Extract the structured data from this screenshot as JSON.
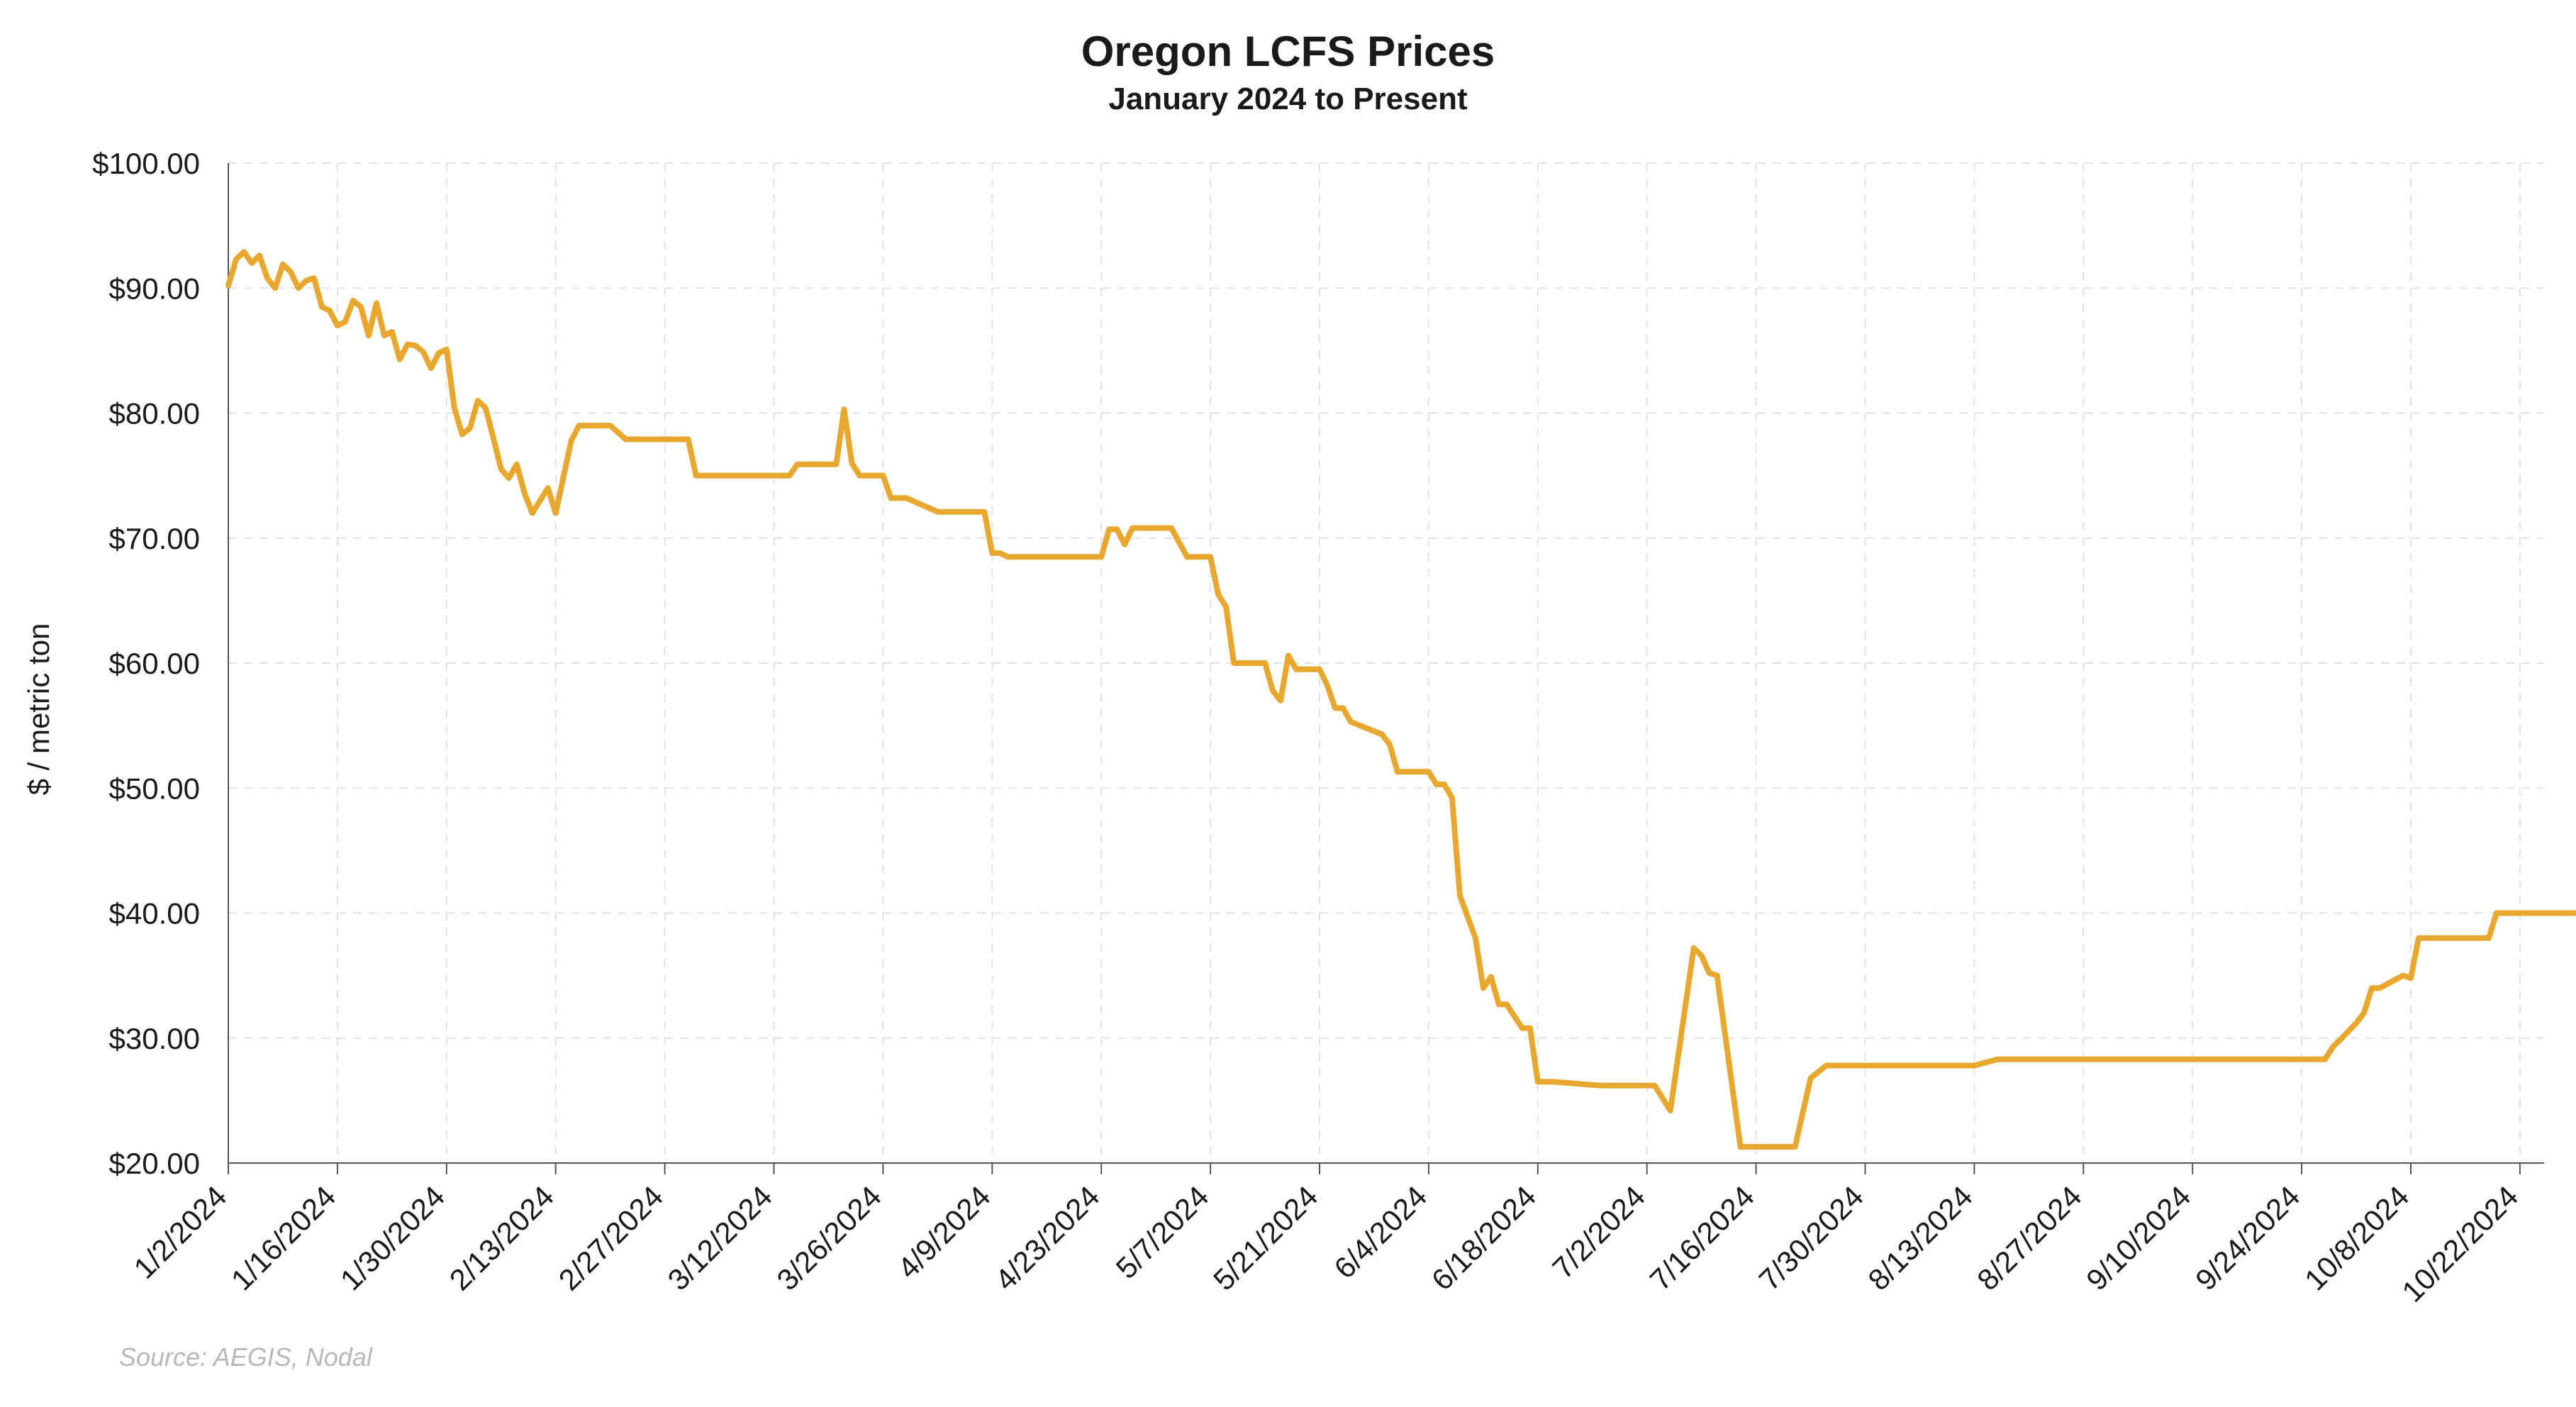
{
  "chart_data": {
    "type": "line",
    "title": "Oregon LCFS Prices",
    "subtitle": "January 2024 to Present",
    "xlabel": "",
    "ylabel": "$ / metric ton",
    "source": "Source: AEGIS, Nodal",
    "ylim": [
      20,
      100
    ],
    "xlim": [
      "2024-01-02",
      "2024-10-29"
    ],
    "yticks": [
      20,
      30,
      40,
      50,
      60,
      70,
      80,
      90,
      100
    ],
    "ytick_labels": [
      "$20.00",
      "$30.00",
      "$40.00",
      "$50.00",
      "$60.00",
      "$70.00",
      "$80.00",
      "$90.00",
      "$100.00"
    ],
    "xtick_labels": [
      "1/2/2024",
      "1/16/2024",
      "1/30/2024",
      "2/13/2024",
      "2/27/2024",
      "3/12/2024",
      "3/26/2024",
      "4/9/2024",
      "4/23/2024",
      "5/7/2024",
      "5/21/2024",
      "6/4/2024",
      "6/18/2024",
      "7/2/2024",
      "7/16/2024",
      "7/30/2024",
      "8/13/2024",
      "8/27/2024",
      "9/10/2024",
      "9/24/2024",
      "10/8/2024",
      "10/22/2024"
    ],
    "grid": true,
    "line_color": "#E8A830",
    "series": [
      {
        "x": [
          "2024-01-02",
          "2024-01-03",
          "2024-01-04",
          "2024-01-05",
          "2024-01-06",
          "2024-01-07",
          "2024-01-08",
          "2024-01-09",
          "2024-01-10",
          "2024-01-11",
          "2024-01-12",
          "2024-01-13",
          "2024-01-14",
          "2024-01-15",
          "2024-01-16",
          "2024-01-17",
          "2024-01-18",
          "2024-01-19",
          "2024-01-20",
          "2024-01-21",
          "2024-01-22",
          "2024-01-23",
          "2024-01-24",
          "2024-01-25",
          "2024-01-26",
          "2024-01-27",
          "2024-01-28",
          "2024-01-29",
          "2024-01-30",
          "2024-01-31",
          "2024-02-01",
          "2024-02-02",
          "2024-02-03",
          "2024-02-04",
          "2024-02-05",
          "2024-02-06",
          "2024-02-07",
          "2024-02-08",
          "2024-02-09",
          "2024-02-10",
          "2024-02-11",
          "2024-02-12",
          "2024-02-13",
          "2024-02-15",
          "2024-02-16",
          "2024-02-17",
          "2024-02-20",
          "2024-02-22",
          "2024-02-23",
          "2024-03-01",
          "2024-03-02",
          "2024-03-11",
          "2024-03-14",
          "2024-03-15",
          "2024-03-20",
          "2024-03-21",
          "2024-03-22",
          "2024-03-23",
          "2024-03-26",
          "2024-03-27",
          "2024-03-28",
          "2024-03-29",
          "2024-04-02",
          "2024-04-04",
          "2024-04-08",
          "2024-04-09",
          "2024-04-10",
          "2024-04-11",
          "2024-04-23",
          "2024-04-24",
          "2024-04-25",
          "2024-04-26",
          "2024-04-27",
          "2024-05-02",
          "2024-05-04",
          "2024-05-07",
          "2024-05-08",
          "2024-05-09",
          "2024-05-10",
          "2024-05-14",
          "2024-05-15",
          "2024-05-16",
          "2024-05-17",
          "2024-05-18",
          "2024-05-21",
          "2024-05-22",
          "2024-05-23",
          "2024-05-24",
          "2024-05-25",
          "2024-05-29",
          "2024-05-30",
          "2024-05-31",
          "2024-06-04",
          "2024-06-05",
          "2024-06-06",
          "2024-06-07",
          "2024-06-08",
          "2024-06-10",
          "2024-06-11",
          "2024-06-12",
          "2024-06-13",
          "2024-06-14",
          "2024-06-16",
          "2024-06-17",
          "2024-06-18",
          "2024-06-20",
          "2024-06-26",
          "2024-06-27",
          "2024-07-03",
          "2024-07-05",
          "2024-07-08",
          "2024-07-09",
          "2024-07-10",
          "2024-07-11",
          "2024-07-14",
          "2024-07-16",
          "2024-07-21",
          "2024-07-23",
          "2024-07-25",
          "2024-07-28",
          "2024-08-13",
          "2024-08-16",
          "2024-08-22",
          "2024-09-27",
          "2024-09-28",
          "2024-09-29",
          "2024-10-01",
          "2024-10-02",
          "2024-10-03",
          "2024-10-04",
          "2024-10-07",
          "2024-10-08",
          "2024-10-09",
          "2024-10-10",
          "2024-10-18",
          "2024-10-19",
          "2024-10-29"
        ],
        "y": [
          90.2,
          92.3,
          92.9,
          92.0,
          92.6,
          90.8,
          90.0,
          91.9,
          91.3,
          90.0,
          90.6,
          90.8,
          88.5,
          88.2,
          87.0,
          87.3,
          89.0,
          88.5,
          86.2,
          88.8,
          86.2,
          86.5,
          84.3,
          85.5,
          85.4,
          84.9,
          83.6,
          84.8,
          85.1,
          80.4,
          78.3,
          78.8,
          81.0,
          80.4,
          78.0,
          75.5,
          74.8,
          75.9,
          73.6,
          72.0,
          73.0,
          74.0,
          72.0,
          77.8,
          79.0,
          79.0,
          79.0,
          77.9,
          77.9,
          77.9,
          75.0,
          75.0,
          75.0,
          75.9,
          75.9,
          80.3,
          76.0,
          75.0,
          75.0,
          73.2,
          73.2,
          73.2,
          72.1,
          72.1,
          72.1,
          68.8,
          68.8,
          68.5,
          68.5,
          70.7,
          70.7,
          69.5,
          70.8,
          70.8,
          68.5,
          68.5,
          65.5,
          64.5,
          60.0,
          60.0,
          57.8,
          57.0,
          60.6,
          59.5,
          59.5,
          58.2,
          56.4,
          56.4,
          55.3,
          54.3,
          53.5,
          51.3,
          51.3,
          50.3,
          50.3,
          49.2,
          41.4,
          38.0,
          34.0,
          34.9,
          32.7,
          32.7,
          30.8,
          30.8,
          26.5,
          26.5,
          26.2,
          26.2,
          26.2,
          24.2,
          37.2,
          36.6,
          35.2,
          35.0,
          21.3,
          21.3,
          21.3,
          26.8,
          27.8,
          27.8,
          27.8,
          28.3,
          28.3,
          28.3,
          29.3,
          29.9,
          31.2,
          32.0,
          34.0,
          34.0,
          35.0,
          34.8,
          38.0,
          38.0,
          38.0,
          40.0,
          40.0
        ]
      }
    ]
  }
}
